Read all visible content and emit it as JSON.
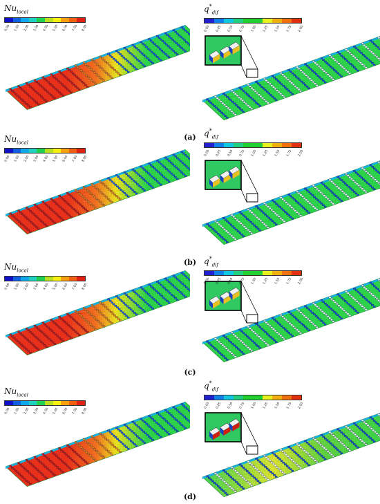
{
  "colors": {
    "nu_scale": [
      "#1010c8",
      "#1060e0",
      "#10a8e8",
      "#20d0c0",
      "#20d050",
      "#b8e020",
      "#f8f010",
      "#f8a010",
      "#f06010",
      "#e02010"
    ],
    "q_scale": [
      "#2020d0",
      "#1080e8",
      "#10c8e0",
      "#20d080",
      "#20d030",
      "#20d030",
      "#e8f020",
      "#f0b010",
      "#f07010",
      "#e03010"
    ],
    "plate_green": "#2ed24a",
    "plate_red": "#e8301a",
    "plate_yellow": "#e8e020",
    "outline": "#000000"
  },
  "panels": [
    {
      "label": "(a)",
      "nu": {
        "title": "Nu",
        "sub": "local",
        "ticks": [
          "0.00",
          "1.00",
          "2.00",
          "3.00",
          "4.00",
          "5.00",
          "6.00",
          "7.00",
          "8.00"
        ]
      },
      "q": {
        "title": "q",
        "sub": "dif",
        "sup": "*",
        "ticks": [
          "0.00",
          "0.25",
          "0.50",
          "0.75",
          "1.00",
          "1.25",
          "1.50",
          "1.75",
          "2.00"
        ]
      }
    },
    {
      "label": "(b)",
      "nu": {
        "title": "Nu",
        "sub": "local",
        "ticks": [
          "0.00",
          "1.00",
          "2.00",
          "3.00",
          "4.00",
          "5.00",
          "6.00",
          "7.00",
          "8.00"
        ]
      },
      "q": {
        "title": "q",
        "sub": "dif",
        "sup": "*",
        "ticks": [
          "0.00",
          "0.25",
          "0.50",
          "0.75",
          "1.00",
          "1.25",
          "1.50",
          "1.75",
          "2.00"
        ]
      }
    },
    {
      "label": "(c)",
      "nu": {
        "title": "Nu",
        "sub": "local",
        "ticks": [
          "0.00",
          "1.00",
          "2.00",
          "3.00",
          "4.00",
          "5.00",
          "6.00",
          "7.00",
          "8.00"
        ]
      },
      "q": {
        "title": "q",
        "sub": "dif",
        "sup": "*",
        "ticks": [
          "0.00",
          "0.25",
          "0.50",
          "0.75",
          "1.00",
          "1.25",
          "1.50",
          "1.75",
          "2.00"
        ]
      }
    },
    {
      "label": "(d)",
      "nu": {
        "title": "Nu",
        "sub": "local",
        "ticks": [
          "0.00",
          "1.00",
          "2.00",
          "3.00",
          "4.00",
          "5.00",
          "6.00",
          "7.00",
          "8.00"
        ]
      },
      "q": {
        "title": "q",
        "sub": "dif",
        "sup": "*",
        "ticks": [
          "0.00",
          "0.25",
          "0.50",
          "0.75",
          "1.00",
          "1.25",
          "1.50",
          "1.75",
          "2.00"
        ]
      }
    }
  ]
}
